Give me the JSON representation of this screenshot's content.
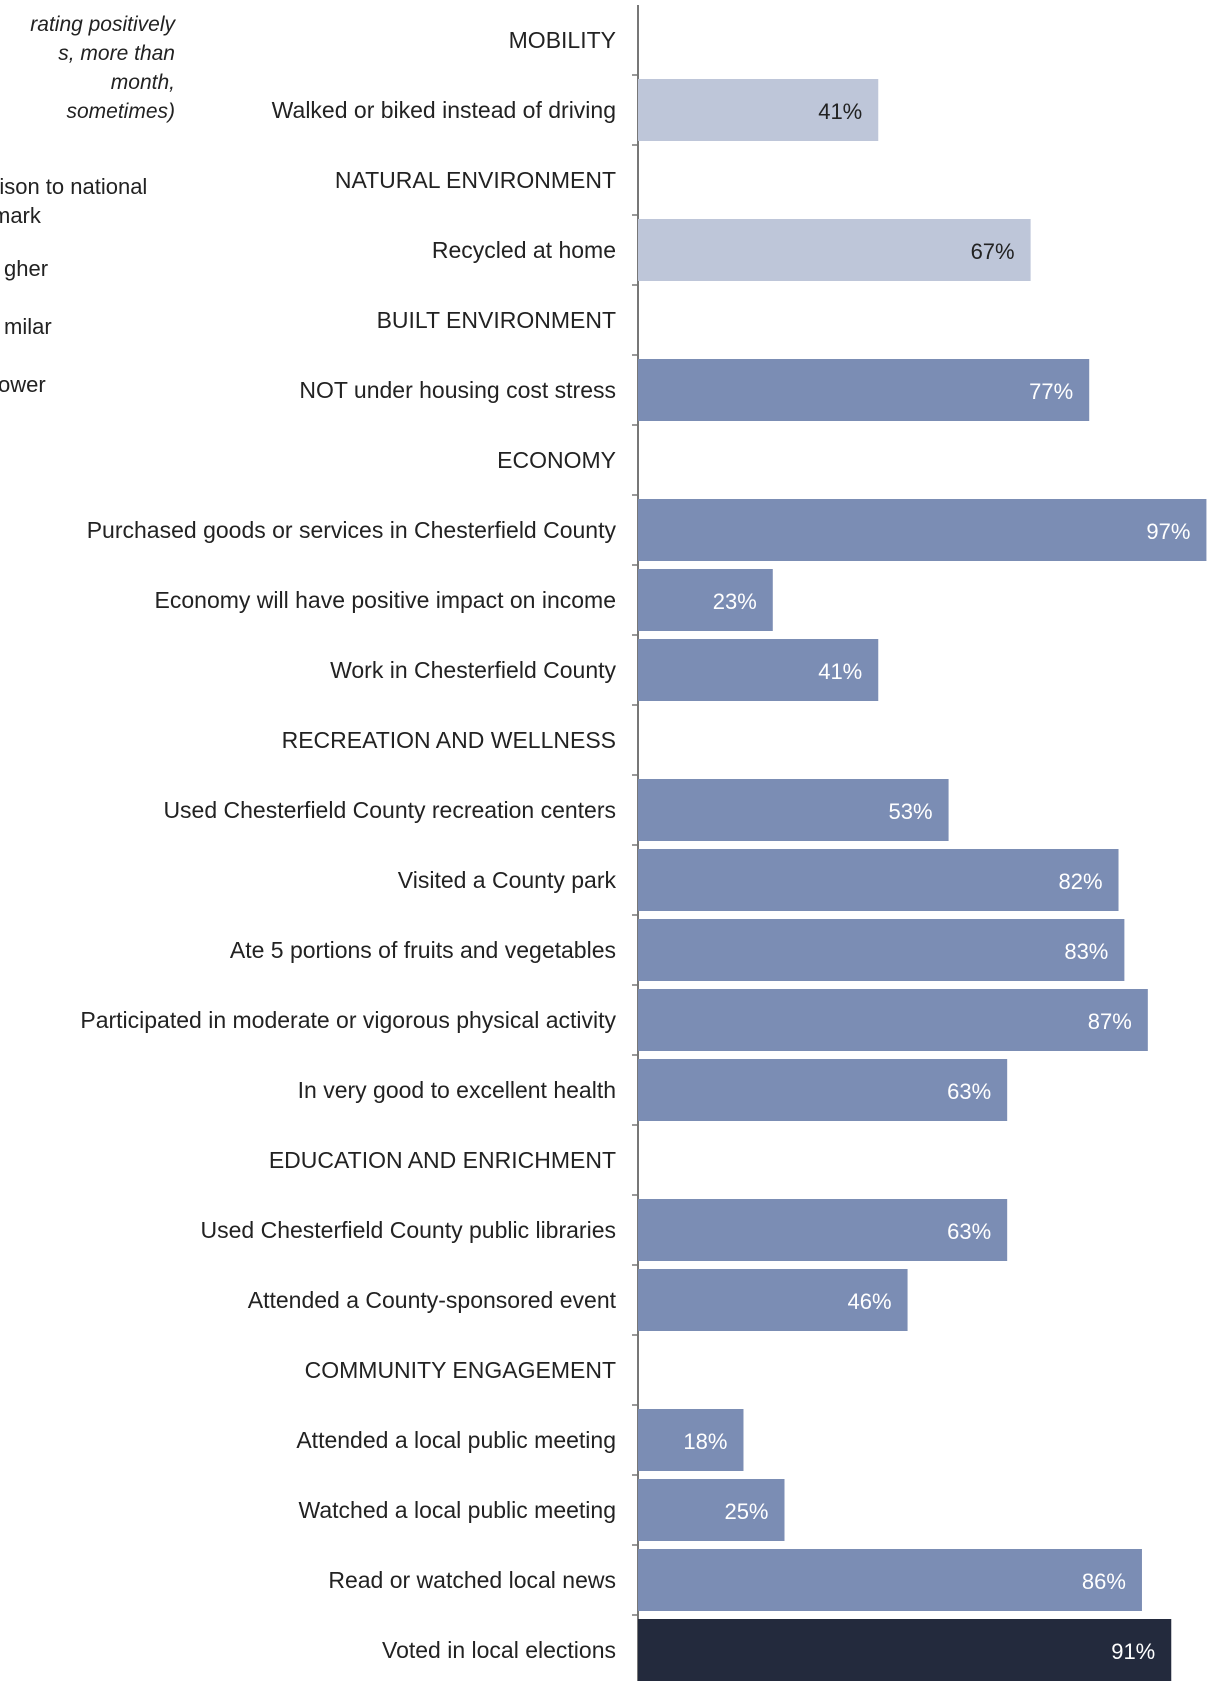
{
  "legend": {
    "note_lines": [
      "rating positively",
      "s, more than",
      "month,",
      "sometimes)"
    ],
    "comparison_lines": [
      "rison to national",
      "mark"
    ],
    "levels": [
      "gher",
      "milar",
      "ower"
    ]
  },
  "colors": {
    "similar": "#bec6d9",
    "higher": "#7b8db4",
    "much_higher": "#232a3d",
    "axis": "#777777"
  },
  "chart_data": {
    "type": "bar",
    "orientation": "horizontal",
    "xlim": [
      0,
      100
    ],
    "rows": [
      {
        "label": "MOBILITY",
        "header": true
      },
      {
        "label": "Walked or biked instead of driving",
        "value": 41,
        "text": "41%",
        "level": "similar"
      },
      {
        "label": "NATURAL ENVIRONMENT",
        "header": true
      },
      {
        "label": "Recycled at home",
        "value": 67,
        "text": "67%",
        "level": "similar"
      },
      {
        "label": "BUILT ENVIRONMENT",
        "header": true
      },
      {
        "label": "NOT under housing cost stress",
        "value": 77,
        "text": "77%",
        "level": "higher"
      },
      {
        "label": "ECONOMY",
        "header": true
      },
      {
        "label": "Purchased goods or services in Chesterfield County",
        "value": 97,
        "text": "97%",
        "level": "higher"
      },
      {
        "label": "Economy will have positive impact on income",
        "value": 23,
        "text": "23%",
        "level": "higher"
      },
      {
        "label": "Work in Chesterfield County",
        "value": 41,
        "text": "41%",
        "level": "higher"
      },
      {
        "label": "RECREATION AND WELLNESS",
        "header": true
      },
      {
        "label": "Used Chesterfield County recreation centers",
        "value": 53,
        "text": "53%",
        "level": "higher"
      },
      {
        "label": "Visited a County park",
        "value": 82,
        "text": "82%",
        "level": "higher"
      },
      {
        "label": "Ate 5 portions of fruits and vegetables",
        "value": 83,
        "text": "83%",
        "level": "higher"
      },
      {
        "label": "Participated in moderate or vigorous physical activity",
        "value": 87,
        "text": "87%",
        "level": "higher"
      },
      {
        "label": "In very good to excellent health",
        "value": 63,
        "text": "63%",
        "level": "higher"
      },
      {
        "label": "EDUCATION AND ENRICHMENT",
        "header": true
      },
      {
        "label": "Used Chesterfield County public libraries",
        "value": 63,
        "text": "63%",
        "level": "higher"
      },
      {
        "label": "Attended a County-sponsored event",
        "value": 46,
        "text": "46%",
        "level": "higher"
      },
      {
        "label": "COMMUNITY ENGAGEMENT",
        "header": true
      },
      {
        "label": "Attended a local public meeting",
        "value": 18,
        "text": "18%",
        "level": "higher"
      },
      {
        "label": "Watched a local public meeting",
        "value": 25,
        "text": "25%",
        "level": "higher"
      },
      {
        "label": "Read or watched local news",
        "value": 86,
        "text": "86%",
        "level": "higher"
      },
      {
        "label": "Voted in local elections",
        "value": 91,
        "text": "91%",
        "level": "much_higher"
      }
    ]
  }
}
